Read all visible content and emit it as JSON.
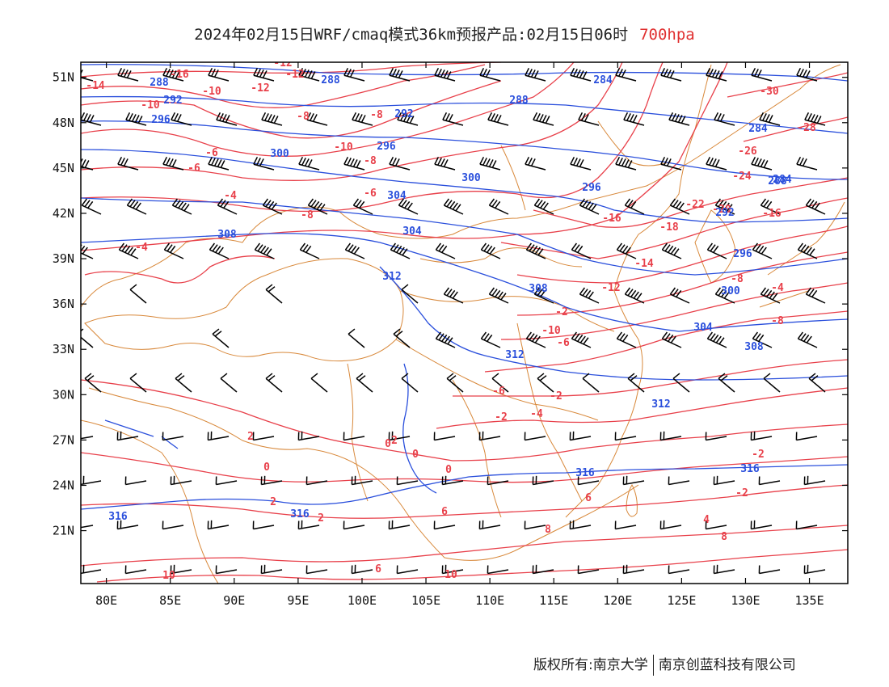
{
  "title": {
    "main": "2024年02月15日WRF/cmaq模式36km预报产品:02月15日06时",
    "level": "700hpa"
  },
  "footer": {
    "copyright": "版权所有:南京大学",
    "company": "南京创蓝科技有限公司"
  },
  "colors": {
    "temperature": "#e8404a",
    "height": "#2a4fdc",
    "borders": "#d8883a",
    "wind": "#000000"
  },
  "icons": [
    "wind-barb-icon"
  ],
  "map": {
    "lon_range": [
      78,
      138
    ],
    "lat_range": [
      17.5,
      52
    ],
    "lon_ticks": [
      "80E",
      "85E",
      "90E",
      "95E",
      "100E",
      "105E",
      "110E",
      "115E",
      "120E",
      "125E",
      "130E",
      "135E"
    ],
    "lat_ticks": [
      "21N",
      "24N",
      "27N",
      "30N",
      "33N",
      "36N",
      "39N",
      "42N",
      "45N",
      "48N",
      "51N"
    ],
    "temperature_labels": [
      "-12",
      "-16",
      "-14",
      "-10",
      "-12",
      "-12",
      "-30",
      "-10",
      "-8",
      "-8",
      "-28",
      "-6",
      "-10",
      "-8",
      "-26",
      "-6",
      "-6",
      "-24",
      "-4",
      "-8",
      "-22",
      "-20",
      "-16",
      "-4",
      "-16",
      "-18",
      "-14",
      "-12",
      "-8",
      "-10",
      "-6",
      "-8",
      "-4",
      "-2",
      "-6",
      "-4",
      "-2",
      "-2",
      "0",
      "0",
      "0",
      "2",
      "-2",
      "2",
      "-2",
      "2",
      "4",
      "2",
      "6",
      "6",
      "8",
      "6",
      "8",
      "10",
      "10",
      "0"
    ],
    "height_labels": [
      "288",
      "288",
      "284",
      "292",
      "288",
      "284",
      "296",
      "292",
      "284",
      "300",
      "296",
      "288",
      "304",
      "300",
      "296",
      "292",
      "308",
      "304",
      "296",
      "312",
      "308",
      "300",
      "304",
      "312",
      "308",
      "312",
      "316",
      "316",
      "316",
      "316"
    ]
  }
}
